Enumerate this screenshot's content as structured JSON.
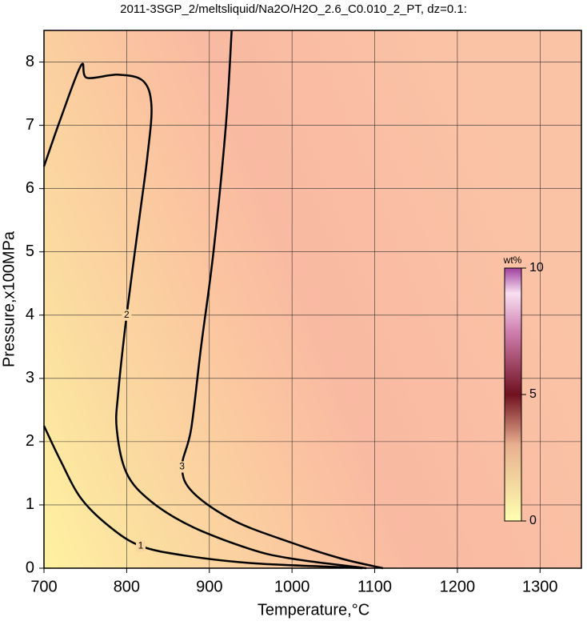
{
  "chart_data": {
    "type": "contour",
    "title": "2011-3SGP_2/meltsliquid/Na2O/H2O_2.6_C0.010_2_PT, dz=0.1:",
    "x_label": "Temperature,°C",
    "y_label": "Pressure,x100MPa",
    "xlim": [
      700,
      1350
    ],
    "ylim": [
      0,
      8.5
    ],
    "xticks": [
      700,
      800,
      900,
      1000,
      1100,
      1200,
      1300
    ],
    "yticks": [
      0,
      1,
      2,
      3,
      4,
      5,
      6,
      7,
      8
    ],
    "grid": true,
    "series": [
      {
        "level": 1,
        "color": "#000000",
        "x": [
          700,
          720,
          745,
          780,
          817,
          870,
          950,
          1050,
          1085
        ],
        "y": [
          2.25,
          1.7,
          1.1,
          0.65,
          0.35,
          0.2,
          0.08,
          0.02,
          0
        ]
      },
      {
        "level": 2,
        "color": "#000000",
        "x": [
          700,
          720,
          745,
          752,
          790,
          820,
          830,
          825,
          815,
          800,
          790,
          788,
          800,
          830,
          880,
          950,
          1000,
          1090
        ],
        "y": [
          6.35,
          7.1,
          7.95,
          7.75,
          7.8,
          7.7,
          7.3,
          6.5,
          5.5,
          4.0,
          2.8,
          2.2,
          1.5,
          1.05,
          0.65,
          0.3,
          0.15,
          0
        ]
      },
      {
        "level": 3,
        "color": "#000000",
        "x": [
          927,
          920,
          905,
          890,
          878,
          867,
          880,
          930,
          1000,
          1060,
          1110
        ],
        "y": [
          8.5,
          7.0,
          5.0,
          3.5,
          2.2,
          1.6,
          1.2,
          0.75,
          0.4,
          0.15,
          0
        ]
      }
    ],
    "colorbar": {
      "label": "wt%",
      "lim": [
        0,
        10
      ],
      "ticks": [
        0,
        5,
        10
      ]
    }
  }
}
